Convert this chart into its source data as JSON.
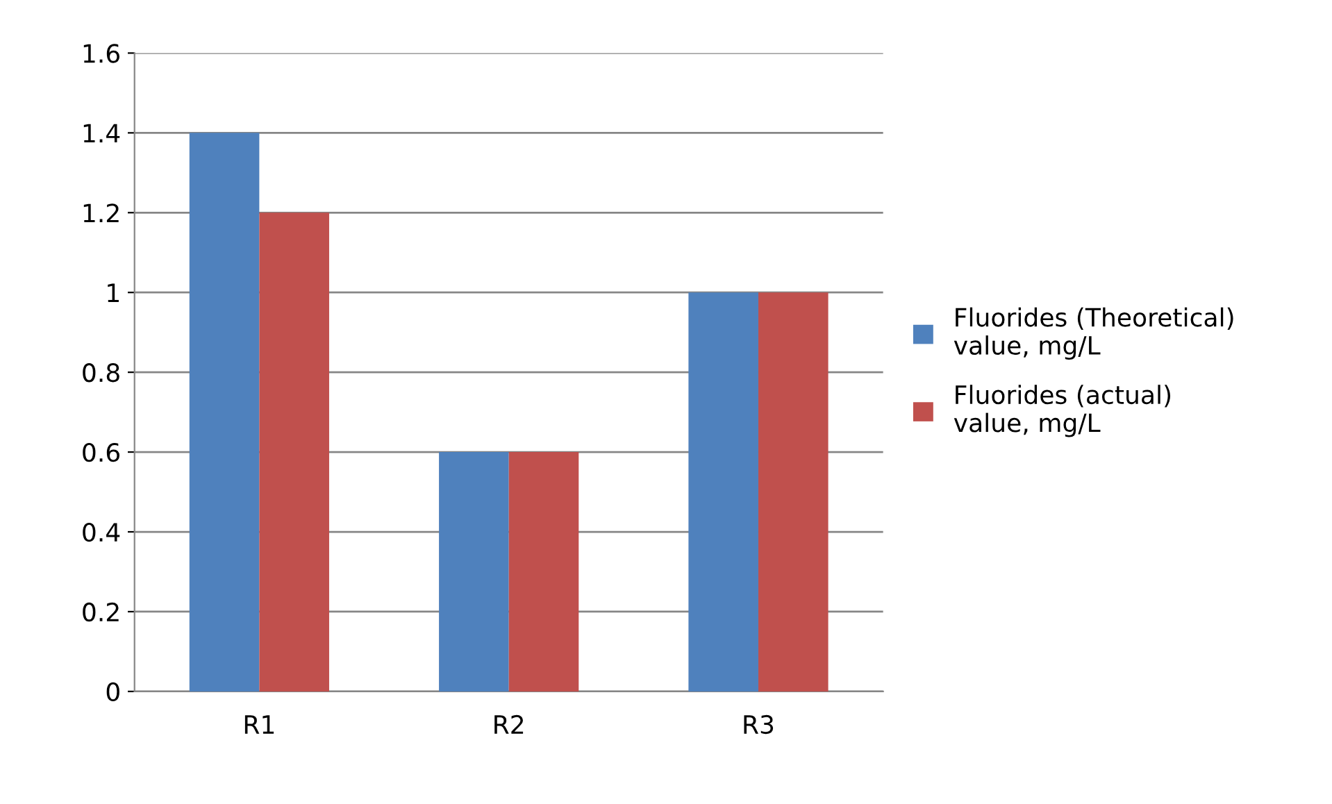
{
  "chart_data": {
    "type": "bar",
    "categories": [
      "R1",
      "R2",
      "R3"
    ],
    "series": [
      {
        "name": "Fluorides (Theoretical)\nvalue, mg/L",
        "color": "#4f81bd",
        "values": [
          1.4,
          0.6,
          1
        ]
      },
      {
        "name": "Fluorides (actual)\nvalue, mg/L",
        "color": "#c0504d",
        "values": [
          1.2,
          0.6,
          1
        ]
      }
    ],
    "ylim": [
      0,
      1.6
    ],
    "yticks": [
      0,
      0.2,
      0.4,
      0.6,
      0.8,
      1,
      1.2,
      1.4,
      1.6
    ],
    "grid": "y",
    "legend": "right"
  }
}
